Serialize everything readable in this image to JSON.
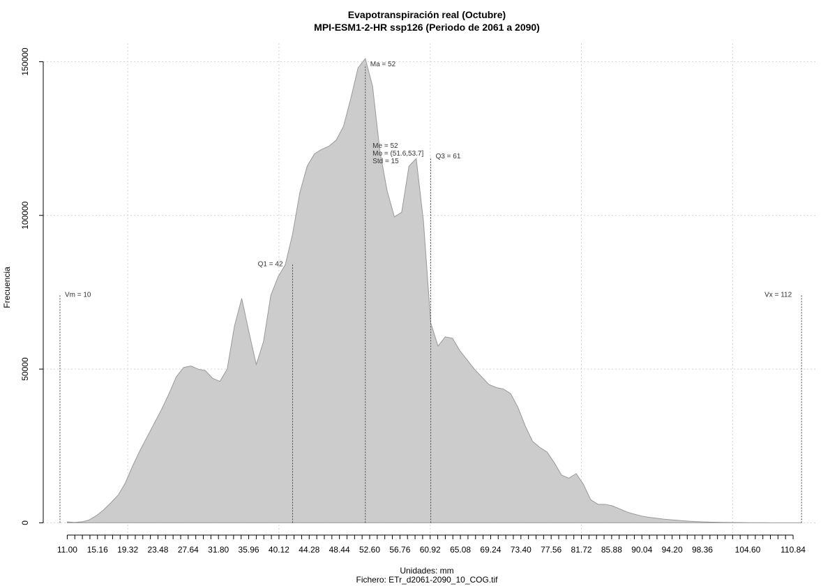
{
  "chart_data": {
    "type": "area",
    "title": "Evapotranspiración real (Octubre)",
    "subtitle": "MPI-ESM1-2-HR ssp126 (Periodo de 2061 a 2090)",
    "xlabel": "Unidades: mm",
    "caption": "Fichero: ETr_d2061-2090_10_COG.tif",
    "ylabel": "Frecuencia",
    "xlim": [
      7.7,
      114.0
    ],
    "ylim": [
      -4000,
      156000
    ],
    "grid": true,
    "fill_color": "#cccccc",
    "line_color": "#999999",
    "x_ticks": [
      11.0,
      12.04,
      13.08,
      14.12,
      15.16,
      16.2,
      17.24,
      18.28,
      19.32,
      20.36,
      21.4,
      22.44,
      23.48,
      24.52,
      25.56,
      26.6,
      27.64,
      28.68,
      29.72,
      30.76,
      31.8,
      32.84,
      33.88,
      34.92,
      35.96,
      37.0,
      38.04,
      39.08,
      40.12,
      41.16,
      42.2,
      43.24,
      44.28,
      45.32,
      46.36,
      47.4,
      48.44,
      49.48,
      50.52,
      51.56,
      52.6,
      53.64,
      54.68,
      55.72,
      56.76,
      57.8,
      58.84,
      59.88,
      60.92,
      61.96,
      63.0,
      64.04,
      65.08,
      66.12,
      67.16,
      68.2,
      69.24,
      70.28,
      71.32,
      72.36,
      73.4,
      74.44,
      75.48,
      76.52,
      77.56,
      78.6,
      79.64,
      80.68,
      81.72,
      82.76,
      83.8,
      84.84,
      85.88,
      86.92,
      87.96,
      89.0,
      90.04,
      91.08,
      92.12,
      93.16,
      94.2,
      95.24,
      96.28,
      97.32,
      98.36,
      99.4,
      100.44,
      101.48,
      102.52,
      103.56,
      104.6,
      105.64,
      106.68,
      107.72,
      108.76,
      109.8,
      110.84
    ],
    "x_tick_labels": [
      "11.00",
      "15.16",
      "19.32",
      "23.48",
      "27.64",
      "31.80",
      "35.96",
      "40.12",
      "44.28",
      "48.44",
      "52.60",
      "56.76",
      "60.92",
      "65.08",
      "69.24",
      "73.40",
      "77.56",
      "81.72",
      "85.88",
      "90.04",
      "94.20",
      "98.36",
      "104.60",
      "110.84"
    ],
    "y_ticks": [
      0,
      50000,
      100000,
      150000
    ],
    "y_tick_labels": [
      "0",
      "50000",
      "100000",
      "150000"
    ],
    "x_grid": [
      19.32,
      40.12,
      60.92,
      81.72,
      102.52
    ],
    "y_grid": [
      0,
      50000,
      100000,
      150000
    ],
    "x": [
      11.0,
      12.0,
      13.0,
      14.0,
      15.0,
      16.0,
      17.0,
      18.0,
      19.0,
      20.0,
      21.0,
      22.0,
      23.0,
      24.0,
      25.0,
      26.0,
      27.0,
      28.0,
      29.0,
      30.0,
      31.0,
      32.0,
      33.0,
      34.0,
      35.0,
      36.0,
      37.0,
      38.0,
      39.0,
      40.0,
      41.0,
      42.0,
      43.0,
      44.0,
      45.0,
      46.0,
      47.0,
      48.0,
      49.0,
      50.0,
      51.0,
      52.0,
      53.0,
      54.0,
      55.0,
      56.0,
      57.0,
      58.0,
      59.0,
      60.0,
      61.0,
      62.0,
      63.0,
      64.0,
      65.0,
      66.0,
      67.0,
      68.0,
      69.0,
      70.0,
      71.0,
      72.0,
      73.0,
      74.0,
      75.0,
      76.0,
      77.0,
      78.0,
      79.0,
      80.0,
      81.0,
      82.0,
      83.0,
      84.0,
      85.0,
      86.0,
      87.0,
      88.0,
      89.0,
      90.0,
      91.0,
      92.0,
      93.0,
      94.0,
      95.0,
      96.0,
      97.0,
      98.0,
      99.0,
      100.0,
      101.0,
      102.0,
      103.0,
      104.0,
      105.0,
      106.0,
      107.0,
      108.0,
      109.0,
      110.0,
      111.0,
      112.0
    ],
    "y": [
      300,
      100,
      300,
      900,
      2300,
      4200,
      6500,
      9000,
      13000,
      18500,
      23500,
      28000,
      32500,
      37000,
      42000,
      47500,
      50500,
      51000,
      50000,
      49500,
      47000,
      46000,
      50000,
      64000,
      73000,
      62000,
      51500,
      59000,
      74000,
      80000,
      84000,
      94000,
      107500,
      116000,
      120000,
      121500,
      122500,
      124500,
      129000,
      138000,
      148000,
      151000,
      142000,
      121000,
      108000,
      99500,
      101000,
      116000,
      118500,
      98000,
      65000,
      57500,
      60500,
      60000,
      56000,
      53000,
      50000,
      47500,
      45000,
      44000,
      43500,
      42000,
      37500,
      31500,
      26500,
      24500,
      23000,
      19500,
      15500,
      14500,
      16000,
      12500,
      7500,
      6000,
      6000,
      5500,
      4500,
      3500,
      2800,
      2200,
      1800,
      1500,
      1200,
      1000,
      800,
      600,
      450,
      350,
      250,
      200,
      150,
      100,
      80,
      60,
      40,
      30,
      20,
      10,
      5,
      0,
      0,
      0
    ],
    "markers": [
      {
        "name": "Vm",
        "x": 10,
        "top": 74000,
        "label": "Vm = 10",
        "align": "start"
      },
      {
        "name": "Q1",
        "x": 42,
        "top": 84000,
        "label": "Q1 = 42",
        "align": "end"
      },
      {
        "name": "Ma",
        "x": 52,
        "top": 149000,
        "label": "Ma = 52",
        "align": "start"
      },
      {
        "name": "Q3",
        "x": 61,
        "top": 119000,
        "label": "Q3 = 61",
        "align": "start"
      },
      {
        "name": "Vx",
        "x": 112,
        "top": 74000,
        "label": "Vx = 112",
        "align": "end"
      }
    ],
    "stats_box": {
      "x": 53.0,
      "lines": [
        "Me = 52",
        "Mo = (51.6,53.7]",
        "Std = 15"
      ],
      "y_values": [
        122000,
        119500,
        117000
      ]
    }
  }
}
